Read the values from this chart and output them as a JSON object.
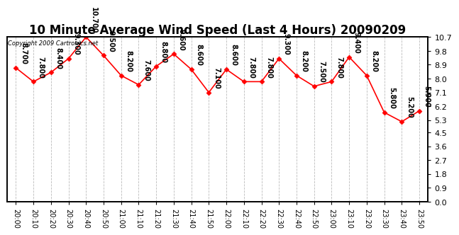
{
  "title": "10 Minute Average Wind Speed (Last 4 Hours) 20090209",
  "copyright_text": "Copyright 2009 Cartronics.net",
  "times": [
    "20:00",
    "20:10",
    "20:20",
    "20:30",
    "20:40",
    "20:50",
    "21:00",
    "21:10",
    "21:20",
    "21:30",
    "21:40",
    "21:50",
    "22:00",
    "22:10",
    "22:20",
    "22:30",
    "22:40",
    "22:50",
    "23:00",
    "23:10",
    "23:20",
    "23:30",
    "23:40",
    "23:50"
  ],
  "values": [
    8.7,
    7.8,
    8.4,
    9.3,
    10.7,
    9.5,
    8.2,
    7.6,
    8.8,
    9.6,
    8.6,
    7.1,
    8.6,
    7.8,
    7.8,
    9.3,
    8.2,
    7.5,
    7.8,
    9.4,
    8.2,
    5.8,
    5.2,
    5.9
  ],
  "yticks": [
    0.0,
    0.9,
    1.8,
    2.7,
    3.6,
    4.5,
    5.3,
    6.2,
    7.1,
    8.0,
    8.9,
    9.8,
    10.7
  ],
  "ylim": [
    0.0,
    10.7
  ],
  "line_color": "red",
  "marker_color": "red",
  "bg_color": "#ffffff",
  "grid_color": "#bbbbbb",
  "title_fontsize": 12,
  "annot_fontsize": 7,
  "copyright_fontsize": 6
}
